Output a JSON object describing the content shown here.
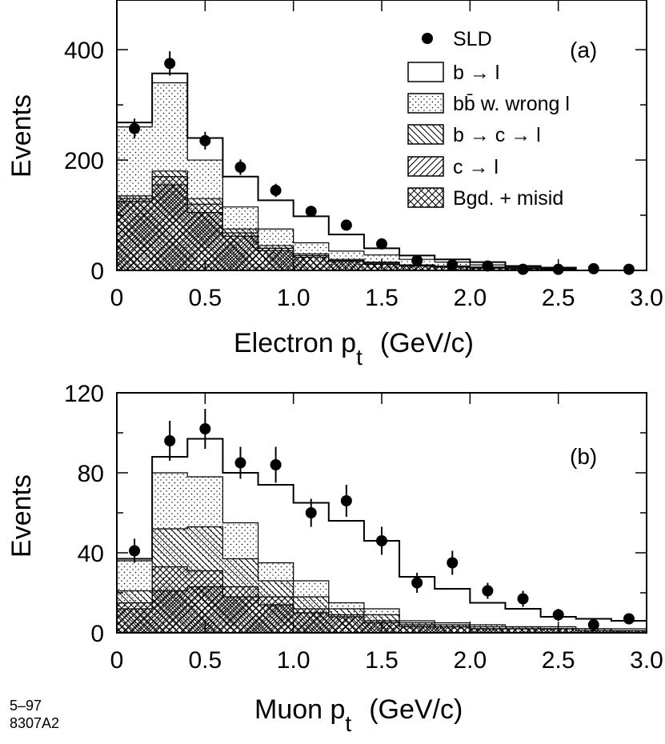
{
  "chart_data": [
    {
      "type": "bar",
      "panel_tag": "(a)",
      "xlabel": "Electron p",
      "xlabel_sub": "t",
      "xlabel_units": "(GeV/c)",
      "ylabel": "Events",
      "xlim": [
        0,
        3.0
      ],
      "ylim": [
        0,
        490
      ],
      "xticks": [
        0,
        0.5,
        1.0,
        1.5,
        2.0,
        2.5,
        3.0
      ],
      "xtick_labels": [
        "0",
        "0.5",
        "1.0",
        "1.5",
        "2.0",
        "2.5",
        "3.0"
      ],
      "yticks": [
        0,
        200,
        400
      ],
      "ytick_labels": [
        "0",
        "200",
        "400"
      ],
      "bin_edges": [
        0.0,
        0.2,
        0.4,
        0.6,
        0.8,
        1.0,
        1.2,
        1.4,
        1.6,
        1.8,
        2.0,
        2.2,
        2.4,
        2.6
      ],
      "series": [
        {
          "name": "b → l",
          "values": [
            268,
            357,
            240,
            170,
            127,
            98,
            65,
            40,
            27,
            20,
            15,
            8,
            5
          ]
        },
        {
          "name": "bb̄ w. wrong l",
          "values": [
            260,
            340,
            200,
            115,
            75,
            50,
            35,
            28,
            20,
            15,
            10,
            6,
            4
          ]
        },
        {
          "name": "b → c → l",
          "values": [
            135,
            180,
            130,
            75,
            45,
            30,
            20,
            15,
            10,
            8,
            6,
            4,
            3
          ]
        },
        {
          "name": "c → l",
          "values": [
            130,
            170,
            120,
            68,
            40,
            27,
            18,
            13,
            9,
            7,
            5,
            3,
            2
          ]
        },
        {
          "name": "Bgd. + misid",
          "values": [
            125,
            155,
            105,
            62,
            36,
            24,
            16,
            11,
            8,
            6,
            4,
            3,
            2
          ]
        }
      ],
      "data_points": {
        "name": "SLD",
        "x": [
          0.1,
          0.3,
          0.5,
          0.7,
          0.9,
          1.1,
          1.3,
          1.5,
          1.7,
          1.9,
          2.1,
          2.3,
          2.5,
          2.7,
          2.9
        ],
        "y": [
          257,
          375,
          235,
          187,
          145,
          107,
          82,
          48,
          18,
          10,
          8,
          2,
          2,
          3,
          2
        ],
        "err": [
          18,
          22,
          16,
          14,
          12,
          10,
          9,
          7,
          4,
          3,
          3,
          2,
          2,
          2,
          2
        ]
      },
      "legend": [
        {
          "label": "SLD",
          "kind": "marker"
        },
        {
          "label": "b → l",
          "kind": "open"
        },
        {
          "label": "bb̄ w. wrong l",
          "kind": "dots"
        },
        {
          "label": "b → c → l",
          "kind": "hatch-back"
        },
        {
          "label": "c → l",
          "kind": "hatch-fwd"
        },
        {
          "label": "Bgd. + misid",
          "kind": "cross"
        }
      ],
      "legend_position": "top-right"
    },
    {
      "type": "bar",
      "panel_tag": "(b)",
      "xlabel": "Muon p",
      "xlabel_sub": "t",
      "xlabel_units": "(GeV/c)",
      "ylabel": "Events",
      "xlim": [
        0,
        3.0
      ],
      "ylim": [
        0,
        120
      ],
      "xticks": [
        0,
        0.5,
        1.0,
        1.5,
        2.0,
        2.5,
        3.0
      ],
      "xtick_labels": [
        "0",
        "0.5",
        "1.0",
        "1.5",
        "2.0",
        "2.5",
        "3.0"
      ],
      "yticks": [
        0,
        40,
        80,
        120
      ],
      "ytick_labels": [
        "0",
        "40",
        "80",
        "120"
      ],
      "bin_edges": [
        0.0,
        0.2,
        0.4,
        0.6,
        0.8,
        1.0,
        1.2,
        1.4,
        1.6,
        1.8,
        2.0,
        2.2,
        2.4,
        2.6,
        2.8,
        3.0
      ],
      "series": [
        {
          "name": "b → l",
          "values": [
            37,
            88,
            97,
            80,
            74,
            65,
            56,
            46,
            28,
            22,
            15,
            12,
            8,
            7,
            6
          ]
        },
        {
          "name": "bb̄ w. wrong l",
          "values": [
            36,
            80,
            78,
            55,
            35,
            26,
            15,
            12,
            6,
            5,
            4,
            3,
            3,
            2,
            2
          ]
        },
        {
          "name": "b → c → l",
          "values": [
            21,
            52,
            53,
            37,
            26,
            18,
            12,
            9,
            5,
            4,
            3,
            3,
            2,
            2,
            1
          ]
        },
        {
          "name": "c → l",
          "values": [
            15,
            33,
            31,
            23,
            18,
            12,
            9,
            6,
            4,
            3,
            2,
            2,
            2,
            1,
            1
          ]
        },
        {
          "name": "Bgd. + misid",
          "values": [
            12,
            21,
            23,
            18,
            14,
            10,
            8,
            5,
            3,
            3,
            2,
            2,
            2,
            1,
            1
          ]
        }
      ],
      "data_points": {
        "name": "SLD",
        "x": [
          0.1,
          0.3,
          0.5,
          0.7,
          0.9,
          1.1,
          1.3,
          1.5,
          1.7,
          1.9,
          2.1,
          2.3,
          2.5,
          2.7,
          2.9
        ],
        "y": [
          41,
          96,
          102,
          85,
          84,
          60,
          66,
          46,
          25,
          35,
          21,
          17,
          9,
          4,
          7
        ],
        "err": [
          6,
          10,
          10,
          8,
          9,
          7,
          8,
          7,
          5,
          6,
          4,
          4,
          3,
          2,
          2
        ]
      }
    }
  ],
  "footer": {
    "date_code": "5–97",
    "figure_code": "8307A2"
  }
}
